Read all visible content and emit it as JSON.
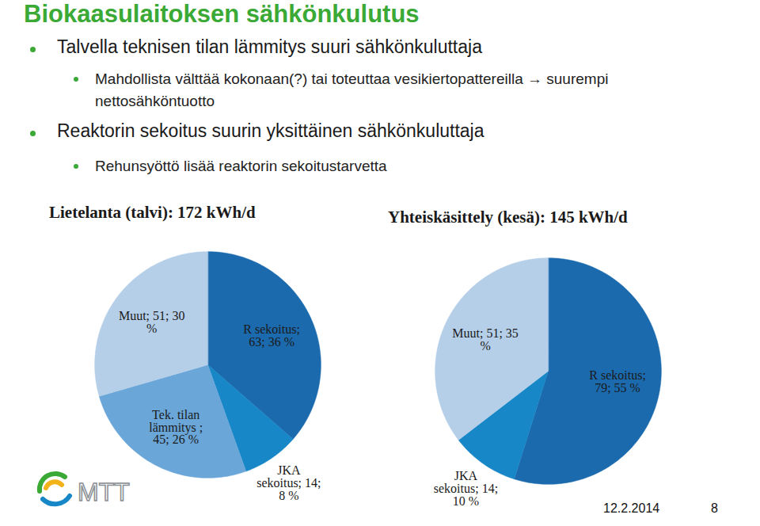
{
  "slide": {
    "title": "Biokaasulaitoksen sähkönkulutus",
    "bullets": [
      {
        "text": "Talvella teknisen tilan lämmitys suuri sähkönkuluttaja",
        "sub": [
          "Mahdollista välttää kokonaan(?) tai toteuttaa vesikiertopattereilla → suurempi nettosähköntuotto"
        ]
      },
      {
        "text": "Reaktorin sekoitus suurin yksittäinen sähkönkuluttaja",
        "sub": [
          "Rehunsyöttö lisää reaktorin sekoitustarvetta"
        ]
      }
    ],
    "logo": "MTT",
    "date": "12.2.2014",
    "page": 8
  },
  "chart_data": [
    {
      "type": "pie",
      "title": "Lietelanta (talvi): 172 kWh/d",
      "categories": [
        "R sekoitus",
        "JKA sekoitus",
        "Tek. tilan lämmitys",
        "Muut"
      ],
      "values": [
        63,
        14,
        45,
        51
      ],
      "value_labels": [
        "R sekoitus; 63; 36 %",
        "JKA sekoitus; 14; 8 %",
        "Tek. tilan lämmitys ; 45; 26 %",
        "Muut; 51; 30 %"
      ],
      "colors": [
        "#1c6aae",
        "#1887c7",
        "#6aa6d8",
        "#b5cfe9"
      ],
      "data_labels": true
    },
    {
      "type": "pie",
      "title": "Yhteiskäsittely (kesä): 145 kWh/d",
      "categories": [
        "R sekoitus",
        "JKA sekoitus",
        "Muut"
      ],
      "values": [
        79,
        14,
        51
      ],
      "value_labels": [
        "R sekoitus; 79; 55 %",
        "JKA sekoitus; 14; 10 %",
        "Muut; 51; 35 %"
      ],
      "colors": [
        "#1c6aae",
        "#1887c7",
        "#b5cfe9"
      ],
      "data_labels": true
    }
  ]
}
